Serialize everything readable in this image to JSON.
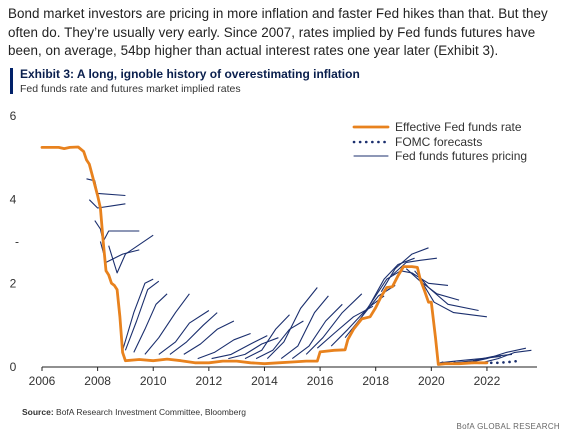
{
  "intro_text": "Bond market investors are pricing in more inflation and faster Fed hikes than that. But they often do. They’re usually very early. Since 2007, rates implied by Fed funds futures have been, on average, 54bp higher than actual interest rates one year later (Exhibit 3).",
  "exhibit": {
    "title": "Exhibit 3: A long, ignoble history of overestimating inflation",
    "subtitle": "Fed funds rate and futures market implied rates"
  },
  "source": {
    "label": "Source:",
    "text": "BofA Research Investment Committee, Bloomberg"
  },
  "brand": "BofA GLOBAL RESEARCH",
  "colors": {
    "effective": "#E8821E",
    "fomc": "#1B2F6E",
    "futures": "#1B2F6E",
    "title": "#0A1F4D",
    "accent_bar": "#012169"
  },
  "chart_data": {
    "type": "line",
    "title": "Exhibit 3: A long, ignoble history of overestimating inflation",
    "subtitle": "Fed funds rate and futures market implied rates",
    "xlabel": "",
    "ylabel": "",
    "xlim": [
      2006,
      2023.8
    ],
    "ylim": [
      0,
      6
    ],
    "x_ticks": [
      "2006",
      "2008",
      "2010",
      "2012",
      "2014",
      "2016",
      "2018",
      "2020",
      "2022"
    ],
    "y_ticks": [
      "0",
      "2",
      "4",
      "6"
    ],
    "y_tick_marker": {
      "y": 3,
      "label": "-"
    },
    "grid": false,
    "legend_position": "top-right",
    "legend": [
      "Effective Fed funds rate",
      "FOMC forecasts",
      "Fed funds futures pricing"
    ],
    "series": [
      {
        "name": "Effective Fed funds rate",
        "style": "solid-thick",
        "x": [
          2006.0,
          2006.2,
          2006.4,
          2006.6,
          2006.8,
          2007.0,
          2007.3,
          2007.5,
          2007.6,
          2007.7,
          2007.8,
          2007.9,
          2008.0,
          2008.1,
          2008.2,
          2008.3,
          2008.4,
          2008.5,
          2008.6,
          2008.7,
          2008.8,
          2008.9,
          2009.0,
          2009.5,
          2010.0,
          2010.5,
          2011.0,
          2011.5,
          2012.0,
          2012.5,
          2013.0,
          2013.5,
          2014.0,
          2014.5,
          2015.0,
          2015.5,
          2015.9,
          2016.0,
          2016.5,
          2016.9,
          2017.0,
          2017.2,
          2017.5,
          2017.8,
          2018.0,
          2018.2,
          2018.4,
          2018.6,
          2018.8,
          2019.0,
          2019.3,
          2019.5,
          2019.6,
          2019.75,
          2019.9,
          2020.0,
          2020.15,
          2020.25,
          2020.5,
          2021.0,
          2021.5,
          2022.0
        ],
        "y": [
          5.25,
          5.25,
          5.25,
          5.25,
          5.22,
          5.25,
          5.26,
          5.15,
          4.95,
          4.85,
          4.6,
          4.35,
          4.1,
          3.8,
          3.0,
          2.3,
          2.2,
          2.0,
          1.95,
          1.85,
          1.2,
          0.35,
          0.15,
          0.18,
          0.15,
          0.19,
          0.15,
          0.1,
          0.1,
          0.14,
          0.14,
          0.1,
          0.08,
          0.1,
          0.12,
          0.14,
          0.14,
          0.36,
          0.4,
          0.41,
          0.66,
          0.9,
          1.15,
          1.2,
          1.42,
          1.69,
          1.9,
          1.92,
          2.18,
          2.4,
          2.4,
          2.38,
          2.1,
          1.83,
          1.55,
          1.55,
          0.7,
          0.06,
          0.08,
          0.08,
          0.1,
          0.1
        ]
      },
      {
        "name": "FOMC forecasts",
        "style": "dotted",
        "x": [
          2020.4,
          2020.8,
          2021.2,
          2021.6,
          2022.0,
          2022.4,
          2022.8,
          2023.2
        ],
        "y": [
          0.1,
          0.1,
          0.1,
          0.1,
          0.1,
          0.1,
          0.12,
          0.15
        ]
      },
      {
        "name": "Fed funds futures pricing",
        "style": "thin",
        "paths": [
          {
            "x": [
              2007.6,
              2007.9,
              2008.0,
              2009.0
            ],
            "y": [
              4.5,
              4.45,
              4.15,
              4.1
            ]
          },
          {
            "x": [
              2007.7,
              2008.0,
              2008.5,
              2009.0
            ],
            "y": [
              4.0,
              3.8,
              3.85,
              3.9
            ]
          },
          {
            "x": [
              2007.9,
              2008.1,
              2008.2,
              2008.4,
              2009.5
            ],
            "y": [
              3.5,
              3.3,
              3.0,
              3.25,
              3.25
            ]
          },
          {
            "x": [
              2008.1,
              2008.3,
              2008.9,
              2009.5
            ],
            "y": [
              3.0,
              2.5,
              2.7,
              2.8
            ]
          },
          {
            "x": [
              2008.4,
              2008.7,
              2009.0,
              2010.0
            ],
            "y": [
              2.9,
              2.25,
              2.7,
              3.15
            ]
          },
          {
            "x": [
              2008.9,
              2009.3,
              2009.7,
              2010.0
            ],
            "y": [
              0.4,
              1.3,
              2.0,
              2.1
            ]
          },
          {
            "x": [
              2009.0,
              2009.4,
              2009.8,
              2010.2
            ],
            "y": [
              0.4,
              1.1,
              1.85,
              2.05
            ]
          },
          {
            "x": [
              2009.3,
              2009.7,
              2010.1,
              2010.5
            ],
            "y": [
              0.35,
              0.9,
              1.5,
              1.75
            ]
          },
          {
            "x": [
              2009.7,
              2010.2,
              2010.8,
              2011.3
            ],
            "y": [
              0.3,
              0.7,
              1.3,
              1.75
            ]
          },
          {
            "x": [
              2010.2,
              2010.8,
              2011.3,
              2012.0
            ],
            "y": [
              0.3,
              0.6,
              1.05,
              1.35
            ]
          },
          {
            "x": [
              2010.6,
              2011.2,
              2011.8,
              2012.3
            ],
            "y": [
              0.3,
              0.6,
              1.0,
              1.3
            ]
          },
          {
            "x": [
              2011.1,
              2011.7,
              2012.3,
              2012.9
            ],
            "y": [
              0.3,
              0.55,
              0.9,
              1.1
            ]
          },
          {
            "x": [
              2011.6,
              2012.2,
              2012.9,
              2013.5
            ],
            "y": [
              0.2,
              0.35,
              0.65,
              0.8
            ]
          },
          {
            "x": [
              2012.1,
              2012.8,
              2013.5,
              2014.1
            ],
            "y": [
              0.2,
              0.3,
              0.55,
              0.75
            ]
          },
          {
            "x": [
              2012.7,
              2013.3,
              2013.9,
              2014.5
            ],
            "y": [
              0.2,
              0.3,
              0.55,
              0.7
            ]
          },
          {
            "x": [
              2013.3,
              2013.9,
              2014.4,
              2014.9
            ],
            "y": [
              0.2,
              0.4,
              0.9,
              1.25
            ]
          },
          {
            "x": [
              2013.7,
              2014.3,
              2014.9,
              2015.4
            ],
            "y": [
              0.2,
              0.4,
              0.9,
              1.1
            ]
          },
          {
            "x": [
              2014.1,
              2014.7,
              2015.3,
              2015.9
            ],
            "y": [
              0.2,
              0.6,
              1.4,
              1.9
            ]
          },
          {
            "x": [
              2014.6,
              2015.2,
              2015.8,
              2016.3
            ],
            "y": [
              0.2,
              0.5,
              1.3,
              1.7
            ]
          },
          {
            "x": [
              2015.0,
              2015.6,
              2016.2,
              2016.8
            ],
            "y": [
              0.2,
              0.5,
              1.1,
              1.5
            ]
          },
          {
            "x": [
              2015.5,
              2016.1,
              2016.8,
              2017.5
            ],
            "y": [
              0.3,
              0.7,
              1.3,
              1.75
            ]
          },
          {
            "x": [
              2015.9,
              2016.5,
              2017.2,
              2017.9
            ],
            "y": [
              0.45,
              0.8,
              1.2,
              1.45
            ]
          },
          {
            "x": [
              2016.4,
              2017.0,
              2017.7,
              2018.3
            ],
            "y": [
              0.5,
              0.9,
              1.4,
              1.7
            ]
          },
          {
            "x": [
              2016.9,
              2017.5,
              2018.1,
              2018.7
            ],
            "y": [
              0.7,
              1.2,
              1.7,
              1.95
            ]
          },
          {
            "x": [
              2017.3,
              2017.9,
              2018.4,
              2018.9
            ],
            "y": [
              1.0,
              1.6,
              2.1,
              2.3
            ]
          },
          {
            "x": [
              2017.8,
              2018.3,
              2018.8,
              2019.4
            ],
            "y": [
              1.5,
              2.1,
              2.45,
              2.6
            ]
          },
          {
            "x": [
              2018.2,
              2018.7,
              2019.3,
              2019.9
            ],
            "y": [
              1.8,
              2.35,
              2.7,
              2.85
            ]
          },
          {
            "x": [
              2018.6,
              2019.1,
              2019.6,
              2020.2
            ],
            "y": [
              2.2,
              2.5,
              2.55,
              2.6
            ]
          },
          {
            "x": [
              2018.9,
              2019.3,
              2019.9,
              2020.6
            ],
            "y": [
              2.3,
              2.25,
              2.0,
              1.95
            ]
          },
          {
            "x": [
              2019.1,
              2019.6,
              2020.2,
              2021.0
            ],
            "y": [
              2.35,
              2.05,
              1.75,
              1.6
            ]
          },
          {
            "x": [
              2019.4,
              2019.9,
              2020.6,
              2021.7
            ],
            "y": [
              2.3,
              1.9,
              1.5,
              1.35
            ]
          },
          {
            "x": [
              2019.6,
              2020.1,
              2020.8,
              2022.0
            ],
            "y": [
              2.1,
              1.55,
              1.3,
              1.2
            ]
          },
          {
            "x": [
              2020.3,
              2021.0,
              2021.8,
              2022.5
            ],
            "y": [
              0.1,
              0.15,
              0.2,
              0.25
            ]
          },
          {
            "x": [
              2020.8,
              2021.5,
              2022.2,
              2022.9
            ],
            "y": [
              0.1,
              0.15,
              0.25,
              0.3
            ]
          },
          {
            "x": [
              2021.3,
              2022.0,
              2022.7,
              2023.4
            ],
            "y": [
              0.1,
              0.2,
              0.35,
              0.45
            ]
          },
          {
            "x": [
              2021.8,
              2022.4,
              2023.0,
              2023.6
            ],
            "y": [
              0.1,
              0.2,
              0.35,
              0.4
            ]
          }
        ]
      }
    ]
  }
}
